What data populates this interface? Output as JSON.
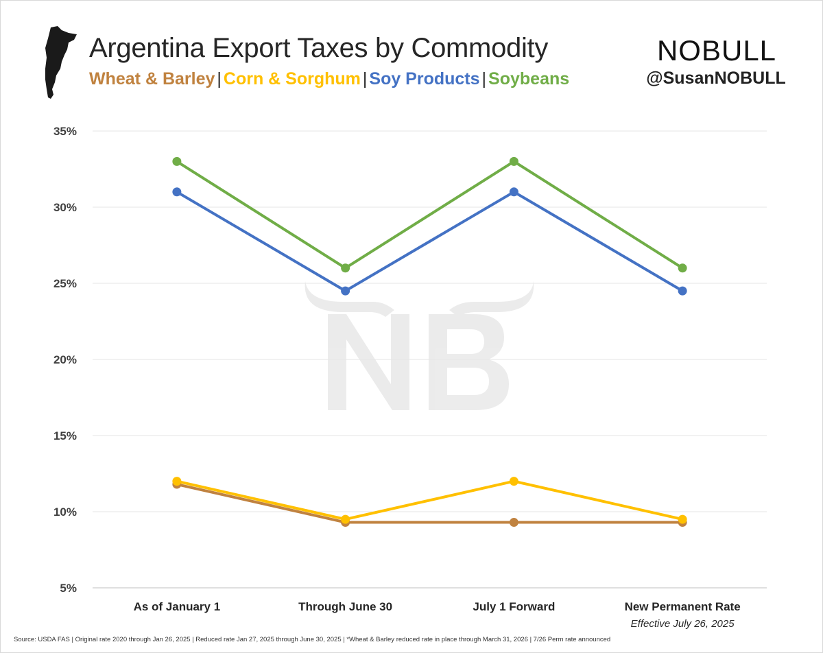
{
  "header": {
    "title": "Argentina Export Taxes by Commodity",
    "subtitle_items": [
      {
        "label": "Wheat & Barley",
        "color": "#c0823f"
      },
      {
        "label": "Corn & Sorghum",
        "color": "#ffc000"
      },
      {
        "label": "Soy Products",
        "color": "#4472c4"
      },
      {
        "label": "Soybeans",
        "color": "#70ad47"
      }
    ],
    "separator": "|",
    "map_icon": "argentina-map-silhouette-icon"
  },
  "brand": {
    "logo_text": "NOBULL",
    "handle": "@SusanNOBULL",
    "watermark": "NB"
  },
  "chart_data": {
    "type": "line",
    "categories": [
      "As of January 1",
      "Through June 30",
      "July 1 Forward",
      "New Permanent Rate"
    ],
    "category_sublabels": [
      "",
      "",
      "",
      "Effective July 26, 2025"
    ],
    "series": [
      {
        "name": "Soybeans",
        "color": "#70ad47",
        "values": [
          33,
          26,
          33,
          26
        ]
      },
      {
        "name": "Soy Products",
        "color": "#4472c4",
        "values": [
          31,
          24.5,
          31,
          24.5
        ]
      },
      {
        "name": "Wheat & Barley",
        "color": "#c0823f",
        "values": [
          11.8,
          9.3,
          9.3,
          9.3
        ]
      },
      {
        "name": "Corn & Sorghum",
        "color": "#ffc000",
        "values": [
          12,
          9.5,
          12,
          9.5
        ]
      }
    ],
    "ylim": [
      5,
      35
    ],
    "yticks": [
      5,
      10,
      15,
      20,
      25,
      30,
      35
    ],
    "ytick_labels": [
      "5%",
      "10%",
      "15%",
      "20%",
      "25%",
      "30%",
      "35%"
    ],
    "grid": true,
    "xlabel": "",
    "ylabel": ""
  },
  "footer": {
    "source": "Source: USDA FAS | Original rate 2020 through Jan 26, 2025 | Reduced rate Jan 27, 2025 through June 30, 2025 | *Wheat & Barley reduced rate in place through March 31, 2026 | 7/26 Perm rate announced"
  }
}
